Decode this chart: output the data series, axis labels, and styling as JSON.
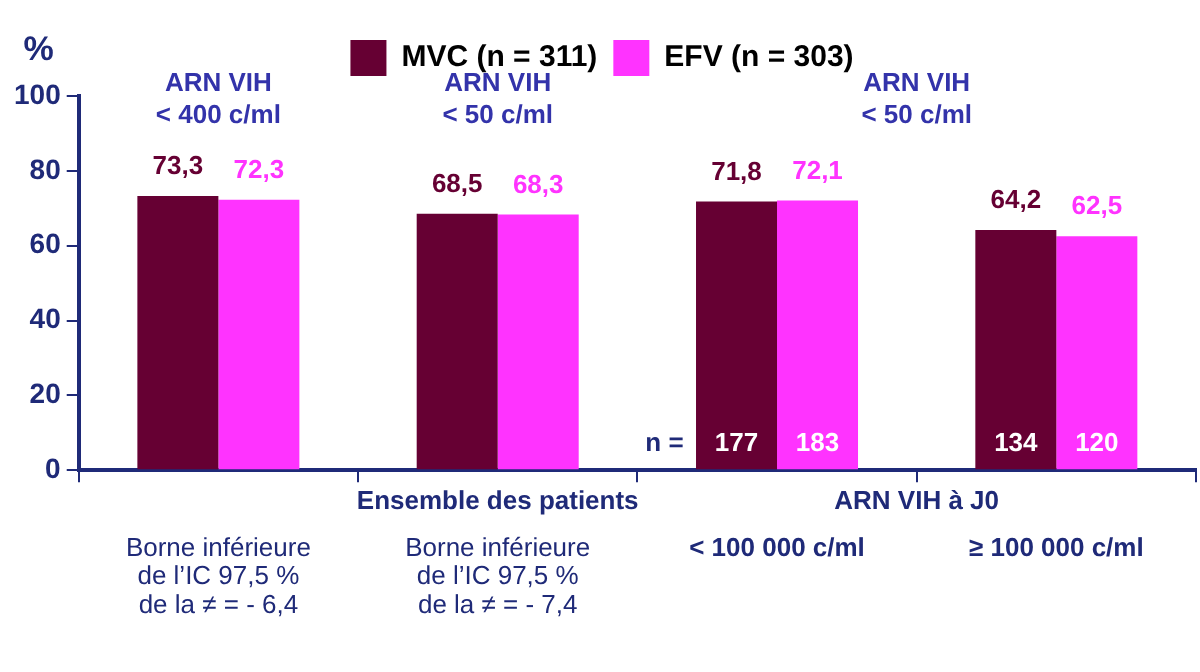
{
  "chart_data": {
    "type": "bar",
    "ylabel": "%",
    "categories": [
      "Borne inférieure\nde l’IC 97,5 %\nde la ≠ = - 6,4",
      "Borne inférieure\nde l’IC 97,5 %\nde la ≠ = - 7,4",
      "< 100 000 c/ml",
      "≥ 100 000 c/ml"
    ],
    "series": [
      {
        "name": "MVC (n = 311)",
        "color": "#660033",
        "values": [
          73.3,
          68.5,
          71.8,
          64.2
        ],
        "value_labels": [
          "73,3",
          "68,5",
          "71,8",
          "64,2"
        ]
      },
      {
        "name": "EFV (n = 303)",
        "color": "#ff33ff",
        "values": [
          72.3,
          68.3,
          72.1,
          62.5
        ],
        "value_labels": [
          "72,3",
          "68,3",
          "72,1",
          "62,5"
        ]
      }
    ],
    "ylim": [
      0,
      100
    ],
    "yticks": [
      0,
      20,
      40,
      60,
      80,
      100
    ],
    "grid": false,
    "legend": "top",
    "annotations": [
      "ARN VIH\n< 400 c/ml",
      "ARN VIH\n< 50 c/ml",
      "ARN VIH\n< 50 c/ml",
      "Ensemble des patients",
      "ARN VIH à J0",
      "n =",
      "177",
      "183",
      "134",
      "120"
    ]
  }
}
